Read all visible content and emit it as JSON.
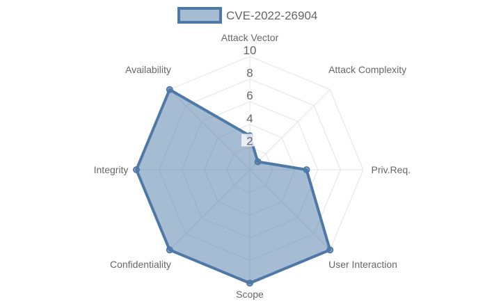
{
  "chart_data": {
    "type": "radar",
    "categories": [
      "Attack Vector",
      "Attack Complexity",
      "Priv.Req.",
      "User Interaction",
      "Scope",
      "Confidentiality",
      "Integrity",
      "Availability"
    ],
    "series": [
      {
        "name": "CVE-2022-26904",
        "values": [
          3,
          1,
          5,
          10,
          10,
          10,
          10,
          10
        ],
        "color": "#4e79a7",
        "fill": "rgba(78,121,167,0.5)"
      }
    ],
    "rlim": [
      0,
      10
    ],
    "ticks": [
      "2",
      "4",
      "6",
      "8",
      "10"
    ],
    "grid": true,
    "legend": "top"
  }
}
